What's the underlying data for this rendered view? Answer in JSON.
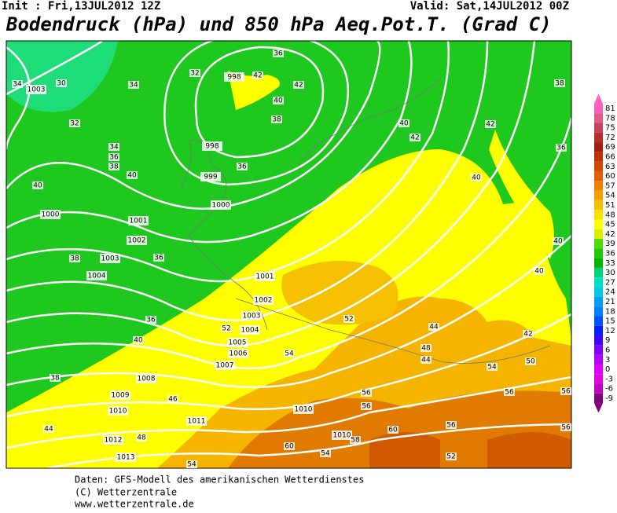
{
  "header": {
    "init": "Init : Fri,13JUL2012 12Z",
    "valid": "Valid: Sat,14JUL2012 00Z",
    "title": "Bodendruck (hPa) und 850 hPa Aeq.Pot.T. (Grad C)"
  },
  "footer": {
    "lines": [
      "Daten: GFS-Modell des amerikanischen Wetterdienstes",
      "(C) Wetterzentrale",
      "www.wetterzentrale.de"
    ]
  },
  "legend": {
    "labels": [
      81,
      78,
      75,
      72,
      69,
      66,
      63,
      60,
      57,
      54,
      51,
      48,
      45,
      42,
      39,
      36,
      33,
      30,
      27,
      24,
      21,
      18,
      15,
      12,
      9,
      6,
      3,
      0,
      -3,
      -6,
      -9
    ],
    "colors": [
      "#ff60c0",
      "#e05a8c",
      "#c84060",
      "#b42c2c",
      "#a01e14",
      "#c03000",
      "#d04800",
      "#e06000",
      "#f08000",
      "#f4a000",
      "#f4c000",
      "#f8e000",
      "#ffff00",
      "#d8f000",
      "#50dc00",
      "#20c800",
      "#00b400",
      "#00d27c",
      "#00e0c0",
      "#00c8e6",
      "#00a0f0",
      "#0080ff",
      "#0050ff",
      "#0020ff",
      "#4000ff",
      "#8000ff",
      "#b000ff",
      "#e000ff",
      "#e000e0",
      "#c000c0",
      "#800080"
    ]
  },
  "map": {
    "isobar_labels": [
      "998",
      "998",
      "999",
      "1000",
      "1000",
      "1001",
      "1002",
      "1003",
      "1004",
      "1001",
      "1002",
      "1003",
      "1004",
      "1005",
      "1006",
      "1007",
      "1008",
      "1009",
      "1010",
      "1011",
      "1012",
      "1013",
      "1010",
      "1010",
      "1003"
    ],
    "temperature_labels": [
      "34",
      "30",
      "34",
      "32",
      "36",
      "42",
      "42",
      "40",
      "38",
      "32",
      "34",
      "36",
      "38",
      "40",
      "36",
      "40",
      "38",
      "36",
      "36",
      "40",
      "38",
      "44",
      "46",
      "48",
      "52",
      "54",
      "52",
      "56",
      "56",
      "60",
      "58",
      "60",
      "54",
      "54",
      "56",
      "52",
      "56",
      "54",
      "56",
      "56",
      "42",
      "40",
      "40",
      "42",
      "38",
      "36",
      "40",
      "40",
      "42",
      "44",
      "48",
      "44",
      "50"
    ]
  }
}
